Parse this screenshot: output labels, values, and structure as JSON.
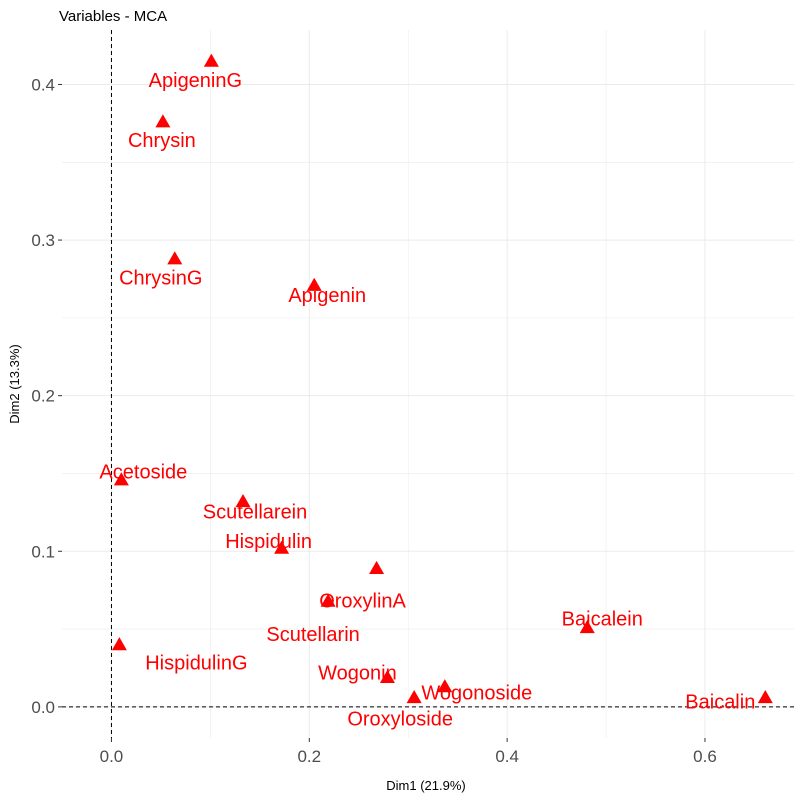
{
  "chart_data": {
    "type": "scatter",
    "title": "Variables - MCA",
    "xlabel": "Dim1 (21.9%)",
    "ylabel": "Dim2 (13.3%)",
    "xlim": [
      -0.05,
      0.69
    ],
    "ylim": [
      -0.02,
      0.435
    ],
    "x_ticks": [
      0.0,
      0.2,
      0.4,
      0.6
    ],
    "x_tick_labels": [
      "0.0",
      "0.2",
      "0.4",
      "0.6"
    ],
    "y_ticks": [
      0.0,
      0.1,
      0.2,
      0.3,
      0.4
    ],
    "y_tick_labels": [
      "0.0",
      "0.1",
      "0.2",
      "0.3",
      "0.4"
    ],
    "grid": true,
    "reference_lines": {
      "x": 0,
      "y": 0,
      "style": "dashed"
    },
    "marker": "triangle",
    "color": "#ff0000",
    "points": [
      {
        "label": "ApigeninG",
        "x": 0.101,
        "y": 0.415
      },
      {
        "label": "Chrysin",
        "x": 0.052,
        "y": 0.376
      },
      {
        "label": "ChrysinG",
        "x": 0.064,
        "y": 0.288
      },
      {
        "label": "Apigenin",
        "x": 0.205,
        "y": 0.271
      },
      {
        "label": "Acetoside",
        "x": 0.01,
        "y": 0.146
      },
      {
        "label": "Scutellarein",
        "x": 0.133,
        "y": 0.132
      },
      {
        "label": "Hispidulin",
        "x": 0.172,
        "y": 0.102
      },
      {
        "label": "OroxylinA",
        "x": 0.268,
        "y": 0.089
      },
      {
        "label": "Scutellarin",
        "x": 0.219,
        "y": 0.068
      },
      {
        "label": "Baicalein",
        "x": 0.481,
        "y": 0.051
      },
      {
        "label": "HispidulinG",
        "x": 0.008,
        "y": 0.04
      },
      {
        "label": "Wogonin",
        "x": 0.279,
        "y": 0.019
      },
      {
        "label": "Wogonoside",
        "x": 0.337,
        "y": 0.013
      },
      {
        "label": "Oroxyloside",
        "x": 0.306,
        "y": 0.006
      },
      {
        "label": "Baicalin",
        "x": 0.661,
        "y": 0.006
      }
    ]
  }
}
